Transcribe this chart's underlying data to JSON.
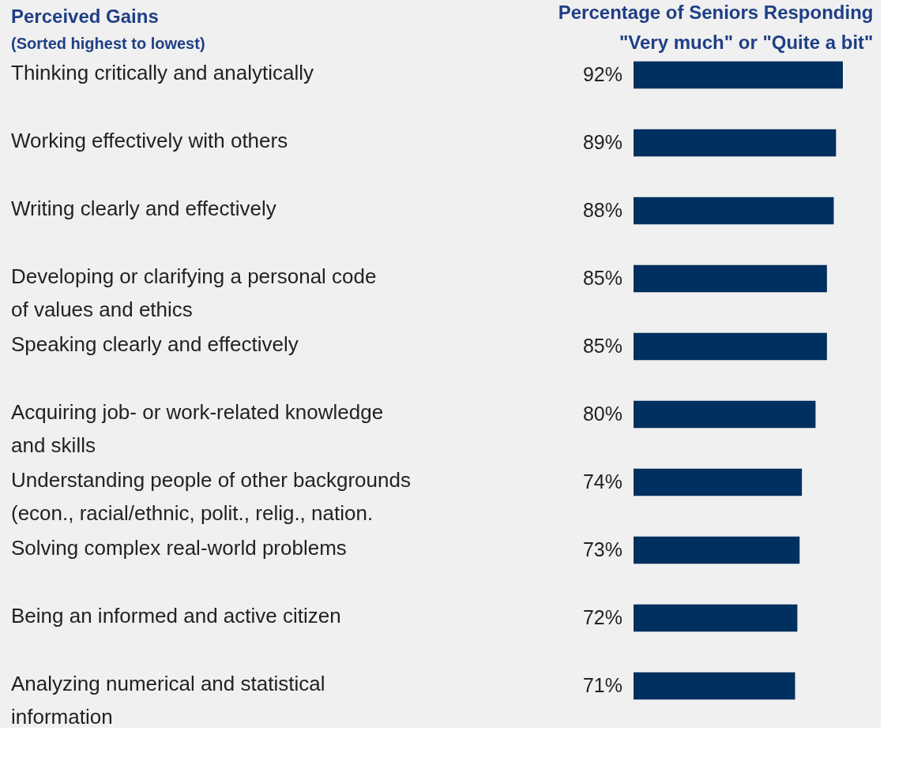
{
  "chart_data": {
    "type": "bar",
    "orientation": "horizontal",
    "title": "Perceived Gains",
    "subtitle": "(Sorted highest to lowest)",
    "xlabel": "Percentage of Seniors Responding\n\"Very much\" or \"Quite a bit\"",
    "categories": [
      "Thinking critically and analytically",
      "Working effectively with others",
      "Writing clearly and effectively",
      "Developing or clarifying a personal code\n of values and ethics",
      "Speaking clearly and effectively",
      "Acquiring job- or work-related knowledge\n and skills",
      "Understanding people of other backgrounds\n (econ., racial/ethnic, polit., relig., nation.",
      "Solving complex real-world problems",
      "Being an informed and active citizen",
      "Analyzing numerical and statistical\ninformation"
    ],
    "values": [
      92,
      89,
      88,
      85,
      85,
      80,
      74,
      73,
      72,
      71
    ],
    "value_labels": [
      "92%",
      "89%",
      "88%",
      "85%",
      "85%",
      "80%",
      "74%",
      "73%",
      "72%",
      "71%"
    ],
    "color": "#00305f",
    "grid": false
  }
}
